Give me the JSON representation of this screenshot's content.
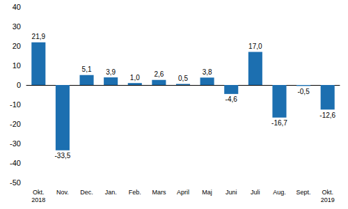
{
  "chart_data": {
    "type": "bar",
    "categories": [
      "Okt.\n2018",
      "Nov.",
      "Dec.",
      "Jan.",
      "Feb.",
      "Mars",
      "April",
      "Maj",
      "Juni",
      "Juli",
      "Aug.",
      "Sept.",
      "Okt.\n2019"
    ],
    "values": [
      21.9,
      -33.5,
      5.1,
      3.9,
      1.0,
      2.6,
      0.5,
      3.8,
      -4.6,
      17.0,
      -16.7,
      -0.5,
      -12.6
    ],
    "value_labels": [
      "21,9",
      "-33,5",
      "5,1",
      "3,9",
      "1,0",
      "2,6",
      "0,5",
      "3,8",
      "-4,6",
      "17,0",
      "-16,7",
      "-0,5",
      "-12,6"
    ],
    "color": "#1c6fb0",
    "ylim": [
      -50,
      40
    ],
    "yticks": [
      -50,
      -40,
      -30,
      -20,
      -10,
      0,
      10,
      20,
      30,
      40
    ],
    "grid": false,
    "data_labels": true
  }
}
